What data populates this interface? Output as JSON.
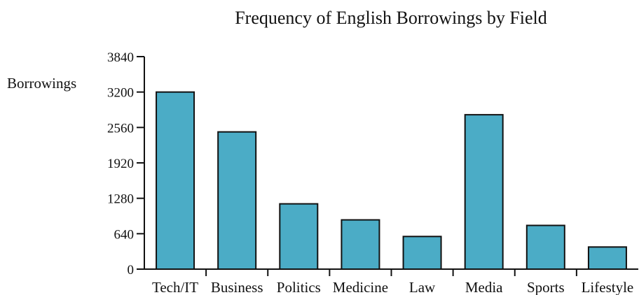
{
  "chart_data": {
    "type": "bar",
    "title": "Frequency of English Borrowings by Field",
    "xlabel": "",
    "ylabel": "Borrowings",
    "categories": [
      "Tech/IT",
      "Business",
      "Politics",
      "Medicine",
      "Law",
      "Media",
      "Sports",
      "Lifestyle"
    ],
    "values": [
      3200,
      2480,
      1180,
      890,
      590,
      2790,
      790,
      400
    ],
    "ylim": [
      0,
      3840
    ],
    "yticks": [
      0,
      640,
      1280,
      1920,
      2560,
      3200,
      3840
    ],
    "grid": false,
    "bar_color": "#4bacc6"
  }
}
